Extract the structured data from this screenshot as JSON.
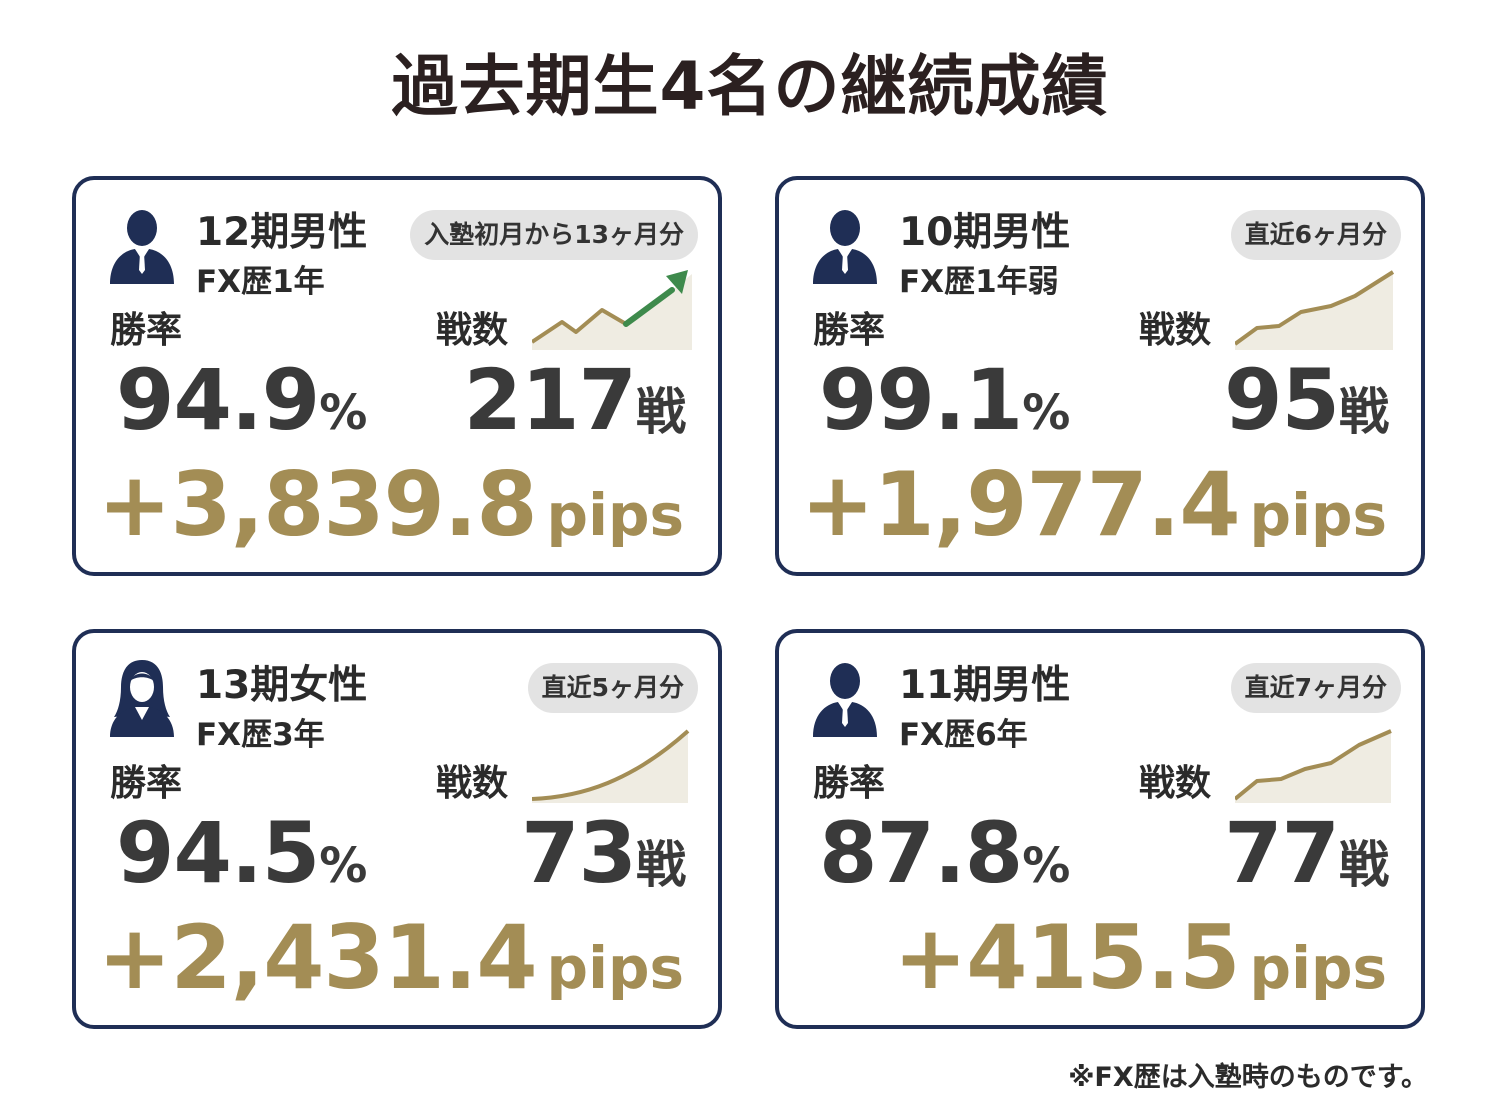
{
  "title": "過去期生4名の継続成績",
  "colors": {
    "navy": "#1f2e55",
    "gold": "#a38d55",
    "text": "#333333",
    "badge_bg": "#e3e3e3",
    "trend_arrow": "#3e8a4c"
  },
  "cards": [
    {
      "avatar": "man-suit-icon",
      "cohort": "12期男性",
      "fx_history": "FX歴1年",
      "period": "入塾初月から13ヶ月分",
      "winrate_label": "勝率",
      "winrate_value": "94.9",
      "winrate_unit": "%",
      "trades_label": "戦数",
      "trades_value": "217",
      "trades_unit": "戦",
      "pips_value": "+3,839.8",
      "pips_unit": "pips",
      "trend_icon": "zigzag-up-arrow-icon"
    },
    {
      "avatar": "man-suit-icon",
      "cohort": "10期男性",
      "fx_history": "FX歴1年弱",
      "period": "直近6ヶ月分",
      "winrate_label": "勝率",
      "winrate_value": "99.1",
      "winrate_unit": "%",
      "trades_label": "戦数",
      "trades_value": "95",
      "trades_unit": "戦",
      "pips_value": "+1,977.4",
      "pips_unit": "pips",
      "trend_icon": "rising-line-icon"
    },
    {
      "avatar": "woman-suit-icon",
      "cohort": "13期女性",
      "fx_history": "FX歴3年",
      "period": "直近5ヶ月分",
      "winrate_label": "勝率",
      "winrate_value": "94.5",
      "winrate_unit": "%",
      "trades_label": "戦数",
      "trades_value": "73",
      "trades_unit": "戦",
      "pips_value": "+2,431.4",
      "pips_unit": "pips",
      "trend_icon": "rising-curve-icon"
    },
    {
      "avatar": "man-suit-icon",
      "cohort": "11期男性",
      "fx_history": "FX歴6年",
      "period": "直近7ヶ月分",
      "winrate_label": "勝率",
      "winrate_value": "87.8",
      "winrate_unit": "%",
      "trades_label": "戦数",
      "trades_value": "77",
      "trades_unit": "戦",
      "pips_value": "+415.5",
      "pips_unit": "pips",
      "trend_icon": "rising-line-icon"
    }
  ],
  "footnote": "※FX歴は入塾時のものです。"
}
